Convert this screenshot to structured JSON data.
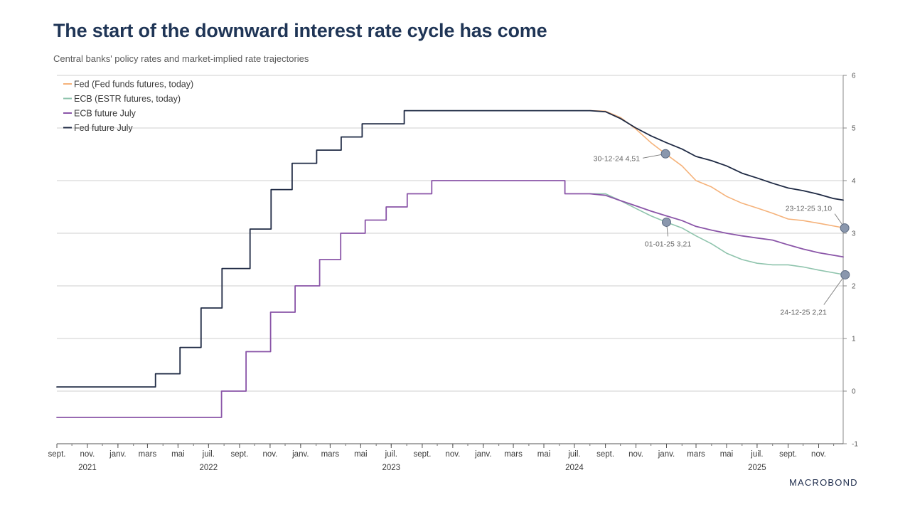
{
  "title": "The start of the downward interest rate cycle has come",
  "subtitle": "Central banks' policy rates and market-implied rate trajectories",
  "brand": "MACROBOND",
  "chart_data": {
    "type": "line",
    "xlim": [
      "2021-09-01",
      "2025-12-20"
    ],
    "ylim": [
      -1,
      6
    ],
    "y_ticks": [
      -1,
      0,
      1,
      2,
      3,
      4,
      5,
      6
    ],
    "y_axis_side": "right",
    "grid": true,
    "legend_position": "top-left",
    "x_ticks": [
      {
        "date": "2021-09-01",
        "label": "sept.",
        "year": ""
      },
      {
        "date": "2021-11-01",
        "label": "nov.",
        "year": "2021"
      },
      {
        "date": "2022-01-01",
        "label": "janv.",
        "year": ""
      },
      {
        "date": "2022-03-01",
        "label": "mars",
        "year": ""
      },
      {
        "date": "2022-05-01",
        "label": "mai",
        "year": ""
      },
      {
        "date": "2022-07-01",
        "label": "juil.",
        "year": "2022"
      },
      {
        "date": "2022-09-01",
        "label": "sept.",
        "year": ""
      },
      {
        "date": "2022-11-01",
        "label": "nov.",
        "year": ""
      },
      {
        "date": "2023-01-01",
        "label": "janv.",
        "year": ""
      },
      {
        "date": "2023-03-01",
        "label": "mars",
        "year": ""
      },
      {
        "date": "2023-05-01",
        "label": "mai",
        "year": ""
      },
      {
        "date": "2023-07-01",
        "label": "juil.",
        "year": "2023"
      },
      {
        "date": "2023-09-01",
        "label": "sept.",
        "year": ""
      },
      {
        "date": "2023-11-01",
        "label": "nov.",
        "year": ""
      },
      {
        "date": "2024-01-01",
        "label": "janv.",
        "year": ""
      },
      {
        "date": "2024-03-01",
        "label": "mars",
        "year": ""
      },
      {
        "date": "2024-05-01",
        "label": "mai",
        "year": ""
      },
      {
        "date": "2024-07-01",
        "label": "juil.",
        "year": "2024"
      },
      {
        "date": "2024-09-01",
        "label": "sept.",
        "year": ""
      },
      {
        "date": "2024-11-01",
        "label": "nov.",
        "year": ""
      },
      {
        "date": "2025-01-01",
        "label": "janv.",
        "year": ""
      },
      {
        "date": "2025-03-01",
        "label": "mars",
        "year": ""
      },
      {
        "date": "2025-05-01",
        "label": "mai",
        "year": ""
      },
      {
        "date": "2025-07-01",
        "label": "juil.",
        "year": "2025"
      },
      {
        "date": "2025-09-01",
        "label": "sept.",
        "year": ""
      },
      {
        "date": "2025-11-01",
        "label": "nov.",
        "year": ""
      }
    ],
    "series": [
      {
        "name": "Fed (Fed funds futures, today)",
        "color": "#f5b27a",
        "x": [
          "2024-08-01",
          "2024-09-01",
          "2024-10-01",
          "2024-11-01",
          "2024-12-01",
          "2024-12-30",
          "2025-02-01",
          "2025-03-01",
          "2025-04-01",
          "2025-05-01",
          "2025-06-01",
          "2025-07-01",
          "2025-08-01",
          "2025-09-01",
          "2025-10-01",
          "2025-11-01",
          "2025-12-23"
        ],
        "y": [
          5.33,
          5.32,
          5.2,
          4.98,
          4.72,
          4.51,
          4.28,
          4.0,
          3.88,
          3.7,
          3.57,
          3.48,
          3.38,
          3.27,
          3.24,
          3.19,
          3.1
        ]
      },
      {
        "name": "ECB (ESTR futures, today)",
        "color": "#8fc4ad",
        "x": [
          "2024-08-01",
          "2024-09-01",
          "2024-10-01",
          "2024-11-01",
          "2024-12-01",
          "2025-01-01",
          "2025-02-01",
          "2025-03-01",
          "2025-04-01",
          "2025-05-01",
          "2025-06-01",
          "2025-07-01",
          "2025-08-01",
          "2025-09-01",
          "2025-10-01",
          "2025-11-01",
          "2025-12-24"
        ],
        "y": [
          3.75,
          3.75,
          3.62,
          3.47,
          3.33,
          3.21,
          3.1,
          2.95,
          2.8,
          2.62,
          2.5,
          2.43,
          2.4,
          2.4,
          2.36,
          2.3,
          2.21
        ]
      },
      {
        "name": "ECB future July",
        "color": "#8a55a8",
        "x": [
          "2021-09-01",
          "2022-07-27",
          "2022-07-27",
          "2022-09-14",
          "2022-09-14",
          "2022-11-02",
          "2022-11-02",
          "2022-12-21",
          "2022-12-21",
          "2023-02-08",
          "2023-02-08",
          "2023-03-22",
          "2023-03-22",
          "2023-05-10",
          "2023-05-10",
          "2023-06-21",
          "2023-06-21",
          "2023-08-02",
          "2023-08-02",
          "2023-09-20",
          "2023-09-20",
          "2024-06-12",
          "2024-06-12",
          "2024-08-01",
          "2024-09-01",
          "2024-10-01",
          "2024-11-01",
          "2024-12-01",
          "2025-01-01",
          "2025-02-01",
          "2025-03-01",
          "2025-04-01",
          "2025-05-01",
          "2025-06-01",
          "2025-07-01",
          "2025-08-01",
          "2025-09-01",
          "2025-10-01",
          "2025-11-01",
          "2025-12-20"
        ],
        "y": [
          -0.5,
          -0.5,
          0,
          0,
          0.75,
          0.75,
          1.5,
          1.5,
          2.0,
          2.0,
          2.5,
          2.5,
          3.0,
          3.0,
          3.25,
          3.25,
          3.5,
          3.5,
          3.75,
          3.75,
          4.0,
          4.0,
          3.75,
          3.75,
          3.72,
          3.62,
          3.52,
          3.42,
          3.33,
          3.24,
          3.13,
          3.06,
          3.0,
          2.95,
          2.91,
          2.87,
          2.78,
          2.7,
          2.63,
          2.55
        ]
      },
      {
        "name": "Fed future July",
        "color": "#1f2a44",
        "x": [
          "2021-09-01",
          "2022-03-17",
          "2022-03-17",
          "2022-05-05",
          "2022-05-05",
          "2022-06-16",
          "2022-06-16",
          "2022-07-28",
          "2022-07-28",
          "2022-09-22",
          "2022-09-22",
          "2022-11-03",
          "2022-11-03",
          "2022-12-15",
          "2022-12-15",
          "2023-02-02",
          "2023-02-02",
          "2023-03-23",
          "2023-03-23",
          "2023-05-04",
          "2023-05-04",
          "2023-07-27",
          "2023-07-27",
          "2024-08-01",
          "2024-09-01",
          "2024-10-01",
          "2024-11-01",
          "2024-12-01",
          "2025-01-01",
          "2025-02-01",
          "2025-03-01",
          "2025-04-01",
          "2025-05-01",
          "2025-06-01",
          "2025-07-01",
          "2025-08-01",
          "2025-09-01",
          "2025-10-01",
          "2025-11-01",
          "2025-12-01",
          "2025-12-20"
        ],
        "y": [
          0.08,
          0.08,
          0.33,
          0.33,
          0.83,
          0.83,
          1.58,
          1.58,
          2.33,
          2.33,
          3.08,
          3.08,
          3.83,
          3.83,
          4.33,
          4.33,
          4.58,
          4.58,
          4.83,
          4.83,
          5.08,
          5.08,
          5.33,
          5.33,
          5.31,
          5.18,
          5.0,
          4.85,
          4.72,
          4.6,
          4.46,
          4.38,
          4.28,
          4.14,
          4.05,
          3.95,
          3.86,
          3.81,
          3.74,
          3.66,
          3.63
        ]
      }
    ],
    "annotations": [
      {
        "text": "30-12-24 4,51",
        "x": "2024-12-30",
        "y": 4.51,
        "side": "left"
      },
      {
        "text": "01-01-25 3,21",
        "x": "2025-01-01",
        "y": 3.21,
        "side": "below"
      },
      {
        "text": "23-12-25 3,10",
        "x": "2025-12-23",
        "y": 3.1,
        "side": "above-left"
      },
      {
        "text": "24-12-25 2,21",
        "x": "2025-12-24",
        "y": 2.21,
        "side": "below-left"
      }
    ]
  }
}
